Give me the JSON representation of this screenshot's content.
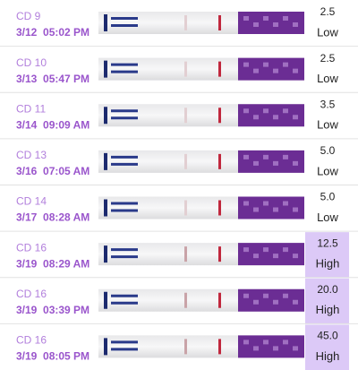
{
  "rows": [
    {
      "cd": "CD 9",
      "datetime": "3/12  05:02 PM",
      "value": "2.5",
      "level": "Low",
      "highlighted": false
    },
    {
      "cd": "CD 10",
      "datetime": "3/13  05:47 PM",
      "value": "2.5",
      "level": "Low",
      "highlighted": false
    },
    {
      "cd": "CD 11",
      "datetime": "3/14  09:09 AM",
      "value": "3.5",
      "level": "Low",
      "highlighted": false
    },
    {
      "cd": "CD 13",
      "datetime": "3/16  07:05 AM",
      "value": "5.0",
      "level": "Low",
      "highlighted": false
    },
    {
      "cd": "CD 14",
      "datetime": "3/17  08:28 AM",
      "value": "5.0",
      "level": "Low",
      "highlighted": false
    },
    {
      "cd": "CD 16",
      "datetime": "3/19  08:29 AM",
      "value": "12.5",
      "level": "High",
      "highlighted": true
    },
    {
      "cd": "CD 16",
      "datetime": "3/19  03:39 PM",
      "value": "20.0",
      "level": "High",
      "highlighted": true
    },
    {
      "cd": "CD 16",
      "datetime": "3/19  08:05 PM",
      "value": "45.0",
      "level": "High",
      "highlighted": true
    }
  ]
}
